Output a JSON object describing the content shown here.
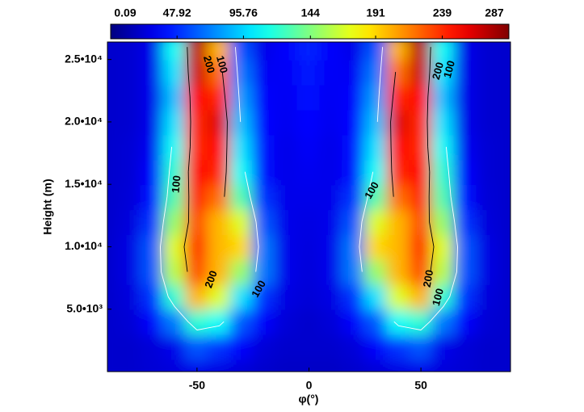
{
  "chart_data": {
    "type": "heatmap",
    "x_label": "φ(°)",
    "y_label": "Height (m)",
    "x": [
      -90,
      -80,
      -70,
      -60,
      -50,
      -40,
      -30,
      -20,
      -10,
      0,
      10,
      20,
      30,
      40,
      50,
      60,
      70,
      80,
      90
    ],
    "y": [
      0,
      2000,
      4000,
      6000,
      8000,
      10000,
      12000,
      14000,
      16000,
      18000,
      20000,
      22000,
      24000,
      26000
    ],
    "z": [
      [
        22,
        22,
        24,
        26,
        30,
        28,
        25,
        22,
        20,
        20,
        20,
        22,
        25,
        28,
        30,
        26,
        24,
        22,
        22
      ],
      [
        22,
        22,
        25,
        30,
        60,
        50,
        35,
        25,
        22,
        22,
        22,
        25,
        35,
        50,
        60,
        30,
        25,
        22,
        22
      ],
      [
        22,
        24,
        35,
        70,
        120,
        110,
        60,
        35,
        25,
        22,
        25,
        35,
        60,
        110,
        120,
        70,
        35,
        24,
        22
      ],
      [
        22,
        26,
        50,
        120,
        200,
        170,
        100,
        50,
        28,
        25,
        28,
        50,
        100,
        170,
        200,
        120,
        50,
        26,
        22
      ],
      [
        22,
        28,
        60,
        160,
        230,
        200,
        150,
        70,
        30,
        26,
        30,
        70,
        150,
        200,
        230,
        160,
        60,
        28,
        22
      ],
      [
        22,
        28,
        60,
        170,
        240,
        200,
        190,
        70,
        30,
        27,
        30,
        70,
        190,
        200,
        240,
        170,
        60,
        28,
        22
      ],
      [
        22,
        26,
        50,
        150,
        230,
        200,
        170,
        60,
        30,
        28,
        30,
        60,
        170,
        200,
        230,
        150,
        50,
        26,
        22
      ],
      [
        22,
        25,
        40,
        130,
        240,
        220,
        130,
        50,
        30,
        30,
        30,
        50,
        130,
        220,
        240,
        130,
        40,
        25,
        22
      ],
      [
        22,
        24,
        35,
        120,
        250,
        240,
        110,
        40,
        30,
        32,
        30,
        40,
        110,
        240,
        250,
        120,
        35,
        24,
        22
      ],
      [
        22,
        24,
        32,
        110,
        240,
        250,
        100,
        38,
        30,
        34,
        30,
        38,
        100,
        250,
        240,
        110,
        32,
        24,
        22
      ],
      [
        22,
        23,
        30,
        100,
        240,
        260,
        90,
        36,
        32,
        36,
        32,
        36,
        90,
        260,
        240,
        100,
        30,
        23,
        22
      ],
      [
        22,
        23,
        30,
        90,
        250,
        240,
        80,
        35,
        33,
        40,
        33,
        35,
        80,
        240,
        250,
        90,
        30,
        23,
        22
      ],
      [
        22,
        23,
        30,
        100,
        265,
        220,
        70,
        33,
        34,
        43,
        34,
        33,
        70,
        220,
        265,
        100,
        30,
        23,
        22
      ],
      [
        22,
        23,
        30,
        110,
        270,
        200,
        60,
        30,
        35,
        45,
        35,
        30,
        60,
        200,
        270,
        110,
        30,
        23,
        22
      ]
    ],
    "xlim": [
      -90,
      90
    ],
    "ylim": [
      0,
      26400
    ],
    "xticks": [
      -50,
      0,
      50
    ],
    "yticks": [
      {
        "value": 5000,
        "label": "5.0•10³"
      },
      {
        "value": 10000,
        "label": "1.0•10⁴"
      },
      {
        "value": 15000,
        "label": "1.5•10⁴"
      },
      {
        "value": 20000,
        "label": "2.0•10⁴"
      },
      {
        "value": 25000,
        "label": "2.5•10⁴"
      }
    ],
    "colormap": "jet",
    "colorbar": {
      "range": [
        0.09,
        287
      ],
      "ticks": [
        0.09,
        47.92,
        95.76,
        144,
        191,
        239,
        287
      ]
    },
    "contour_levels": [
      100,
      200
    ],
    "contour_colors": [
      "#ffffff",
      "#000000"
    ]
  }
}
